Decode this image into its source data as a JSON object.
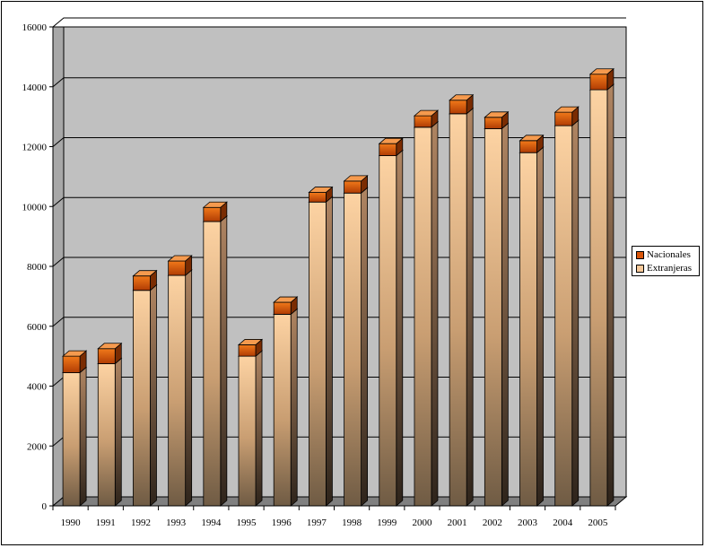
{
  "chart_data": {
    "type": "bar",
    "stacked": true,
    "style": "3d-column",
    "categories": [
      "1990",
      "1991",
      "1992",
      "1993",
      "1994",
      "1995",
      "1996",
      "1997",
      "1998",
      "1999",
      "2000",
      "2001",
      "2002",
      "2003",
      "2004",
      "2005"
    ],
    "series": [
      {
        "name": "Nacionales",
        "color": "#d9560a",
        "values": [
          550,
          500,
          480,
          480,
          470,
          380,
          400,
          320,
          400,
          400,
          380,
          450,
          380,
          400,
          450,
          520
        ]
      },
      {
        "name": "Extranjeras",
        "color": "#f7c99a",
        "values": [
          4450,
          4750,
          7200,
          7700,
          9500,
          5000,
          6400,
          10150,
          10450,
          11700,
          12650,
          13100,
          12600,
          11800,
          12700,
          13900
        ]
      }
    ],
    "ylim": [
      0,
      16000
    ],
    "yticks": [
      "0",
      "2000",
      "4000",
      "6000",
      "8000",
      "10000",
      "12000",
      "14000",
      "16000"
    ],
    "grid": true,
    "wall_color": "#c0c0c0",
    "legend_position": "right"
  }
}
